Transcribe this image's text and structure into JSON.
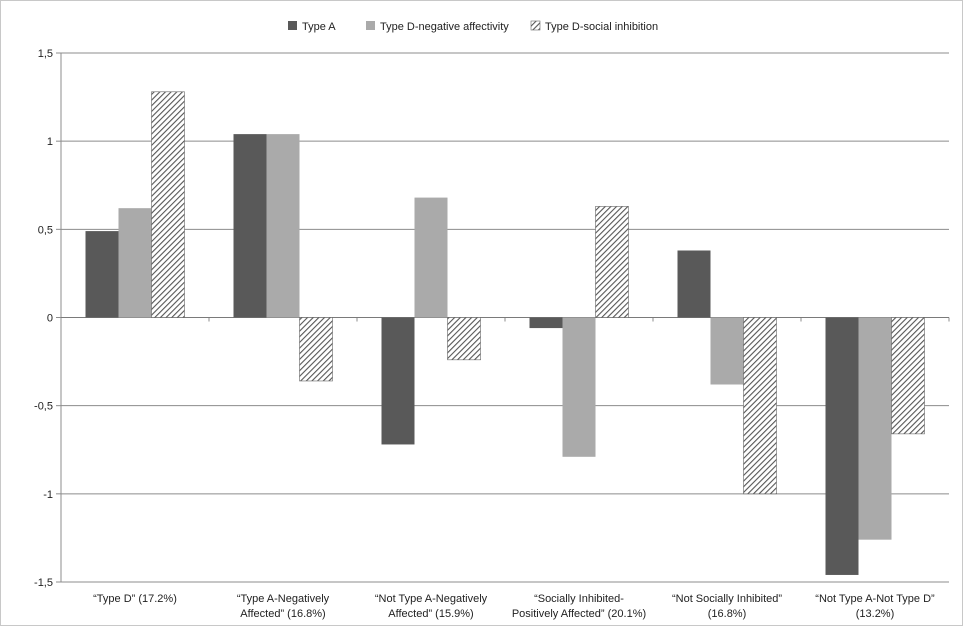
{
  "chart_data": {
    "type": "bar",
    "title": "",
    "xlabel": "",
    "ylabel": "",
    "ylim": [
      -1.5,
      1.5
    ],
    "yticks": [
      "1,5",
      "1",
      "0,5",
      "0",
      "-0,5",
      "-1",
      "-1,5"
    ],
    "ytick_values": [
      1.5,
      1,
      0.5,
      0,
      -0.5,
      -1,
      -1.5
    ],
    "grid": true,
    "legend_position": "top",
    "categories": [
      [
        "“Type D” (17.2%)"
      ],
      [
        "“Type A-Negatively",
        "Affected” (16.8%)"
      ],
      [
        "“Not Type A-Negatively",
        "Affected” (15.9%)"
      ],
      [
        "“Socially Inhibited-",
        "Positively Affected” (20.1%)"
      ],
      [
        "“Not Socially Inhibited”",
        "(16.8%)"
      ],
      [
        "“Not Type A-Not Type D”",
        "(13.2%)"
      ]
    ],
    "series": [
      {
        "name": "Type A",
        "color": "#595959",
        "pattern": "solid",
        "values": [
          0.49,
          1.04,
          -0.72,
          -0.06,
          0.38,
          -1.46
        ]
      },
      {
        "name": "Type D-negative affectivity",
        "color": "#aaaaaa",
        "pattern": "solid",
        "values": [
          0.62,
          1.04,
          0.68,
          -0.79,
          -0.38,
          -1.26
        ]
      },
      {
        "name": "Type D-social inhibition",
        "color": "#555555",
        "pattern": "hatch",
        "values": [
          1.28,
          -0.36,
          -0.24,
          0.63,
          -1.0,
          -0.66
        ]
      }
    ]
  }
}
